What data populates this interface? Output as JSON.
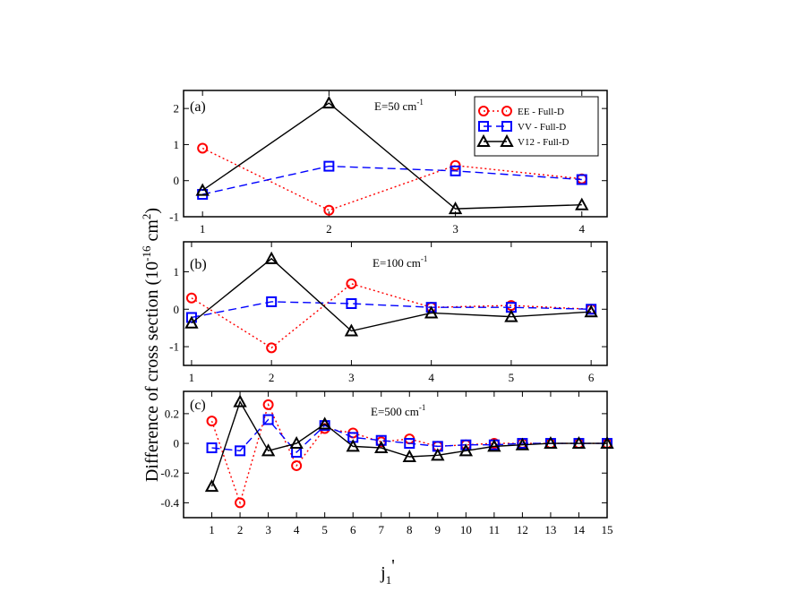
{
  "ylabel_main": "Difference of cross section (10",
  "ylabel_exp1": "-16",
  "ylabel_mid": " cm",
  "ylabel_exp2": "2",
  "ylabel_end": ")",
  "xlabel_main": "j",
  "xlabel_sub": "1",
  "xlabel_prime": "'",
  "legend": [
    {
      "label": "EE - Full-D",
      "color": "#ff0000",
      "marker": "circle",
      "dash": "dotted"
    },
    {
      "label": "VV - Full-D",
      "color": "#0000ff",
      "marker": "square",
      "dash": "dashed"
    },
    {
      "label": "V12 - Full-D",
      "color": "#000000",
      "marker": "triangle",
      "dash": "solid"
    }
  ],
  "chart_data": [
    {
      "type": "line",
      "panel": "(a)",
      "energy_text": "E=50 cm",
      "energy_exp": "-1",
      "x": [
        1,
        2,
        3,
        4
      ],
      "xlim": [
        0.85,
        4.2
      ],
      "ylim": [
        -1,
        2.5
      ],
      "yticks": [
        -1,
        0,
        1,
        2
      ],
      "xticks": [
        1,
        2,
        3,
        4
      ],
      "series": [
        {
          "name": "EE - Full-D",
          "values": [
            0.9,
            -0.82,
            0.42,
            0.05
          ]
        },
        {
          "name": "VV - Full-D",
          "values": [
            -0.38,
            0.4,
            0.27,
            0.03
          ]
        },
        {
          "name": "V12 - Full-D",
          "values": [
            -0.27,
            2.15,
            -0.78,
            -0.67
          ]
        }
      ]
    },
    {
      "type": "line",
      "panel": "(b)",
      "energy_text": "E=100 cm",
      "energy_exp": "-1",
      "x": [
        1,
        2,
        3,
        4,
        5,
        6
      ],
      "xlim": [
        0.9,
        6.2
      ],
      "ylim": [
        -1.5,
        1.8
      ],
      "yticks": [
        -1,
        0,
        1
      ],
      "xticks": [
        1,
        2,
        3,
        4,
        5,
        6
      ],
      "series": [
        {
          "name": "EE - Full-D",
          "values": [
            0.3,
            -1.03,
            0.68,
            0.05,
            0.1,
            0.0
          ]
        },
        {
          "name": "VV - Full-D",
          "values": [
            -0.22,
            0.2,
            0.15,
            0.05,
            0.05,
            0.0
          ]
        },
        {
          "name": "V12 - Full-D",
          "values": [
            -0.37,
            1.35,
            -0.58,
            -0.1,
            -0.2,
            -0.07
          ]
        }
      ]
    },
    {
      "type": "line",
      "panel": "(c)",
      "energy_text": "E=500 cm",
      "energy_exp": "-1",
      "x": [
        1,
        2,
        3,
        4,
        5,
        6,
        7,
        8,
        9,
        10,
        11,
        12,
        13,
        14,
        15
      ],
      "xlim": [
        0,
        15
      ],
      "ylim": [
        -0.5,
        0.35
      ],
      "yticks": [
        -0.4,
        -0.2,
        0,
        0.2
      ],
      "ytick_labels": [
        "-0.4",
        "-0.2",
        "0",
        "0.2"
      ],
      "xticks": [
        1,
        2,
        3,
        4,
        5,
        6,
        7,
        8,
        9,
        10,
        11,
        12,
        13,
        14,
        15
      ],
      "series": [
        {
          "name": "EE - Full-D",
          "values": [
            0.15,
            -0.4,
            0.26,
            -0.15,
            0.1,
            0.07,
            0.01,
            0.03,
            -0.02,
            -0.01,
            0.0,
            0.0,
            0.0,
            0.0,
            0.0
          ]
        },
        {
          "name": "VV - Full-D",
          "values": [
            -0.03,
            -0.05,
            0.16,
            -0.06,
            0.12,
            0.04,
            0.02,
            0.0,
            -0.02,
            -0.01,
            -0.01,
            0.0,
            0.0,
            0.0,
            0.0
          ]
        },
        {
          "name": "V12 - Full-D",
          "values": [
            -0.29,
            0.28,
            -0.05,
            0.0,
            0.13,
            -0.02,
            -0.03,
            -0.09,
            -0.08,
            -0.05,
            -0.02,
            -0.01,
            0.0,
            0.0,
            0.0
          ]
        }
      ]
    }
  ]
}
